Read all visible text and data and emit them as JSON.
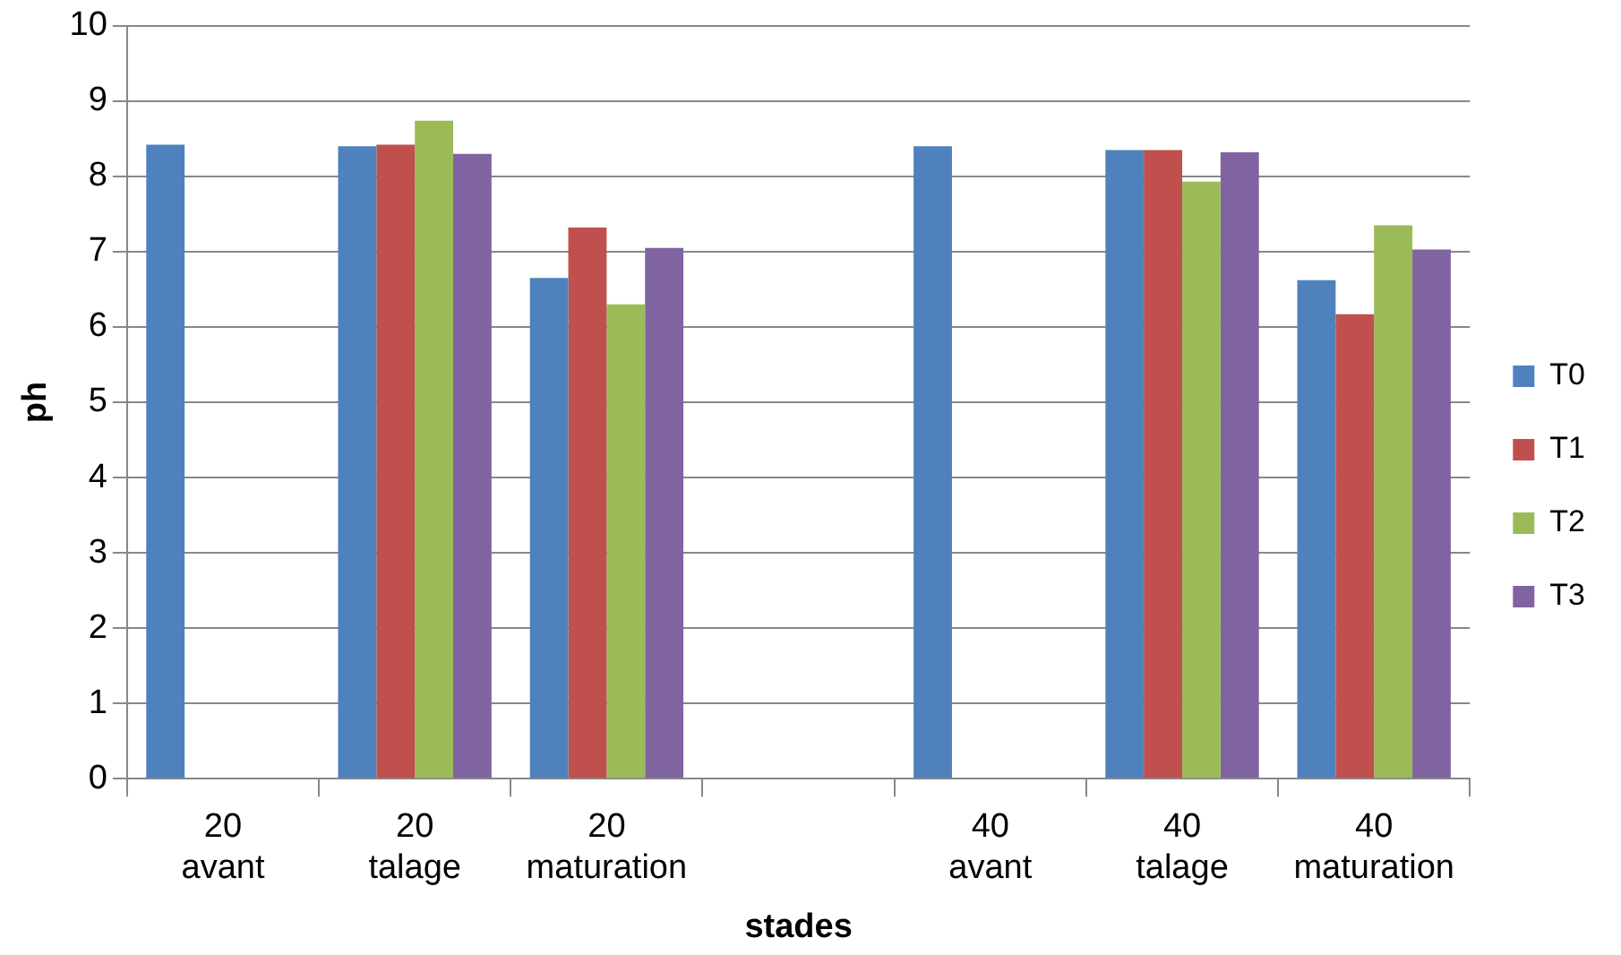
{
  "chart_data": {
    "type": "bar",
    "xlabel": "stades",
    "ylabel": "ph",
    "categories": [
      "20\navant",
      "20\ntalage",
      "20\nmaturation",
      null,
      "40\navant",
      "40\ntalage",
      "40\nmaturation"
    ],
    "series": [
      {
        "name": "T0",
        "color": "#4f81bd",
        "values": [
          8.42,
          8.4,
          6.65,
          null,
          8.4,
          8.35,
          6.62
        ]
      },
      {
        "name": "T1",
        "color": "#c0504d",
        "values": [
          null,
          8.42,
          7.32,
          null,
          null,
          8.35,
          6.17
        ]
      },
      {
        "name": "T2",
        "color": "#9bbb59",
        "values": [
          null,
          8.74,
          6.3,
          null,
          null,
          7.93,
          7.35
        ]
      },
      {
        "name": "T3",
        "color": "#8064a2",
        "values": [
          null,
          8.3,
          7.05,
          null,
          null,
          8.32,
          7.03
        ]
      }
    ],
    "ylim": [
      0,
      10
    ],
    "yticks": [
      0,
      1,
      2,
      3,
      4,
      5,
      6,
      7,
      8,
      9,
      10
    ],
    "grid": "y",
    "legend": "right"
  }
}
